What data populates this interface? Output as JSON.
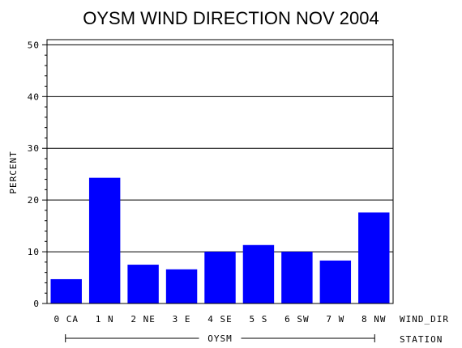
{
  "chart_data": {
    "type": "bar",
    "title": "OYSM WIND DIRECTION NOV 2004",
    "ylabel": "PERCENT",
    "xlabel": "WIND_DIR",
    "group_label": "STATION",
    "group_name": "OYSM",
    "categories": [
      "0 CA",
      "1 N",
      "2 NE",
      "3 E",
      "4 SE",
      "5 S",
      "6 SW",
      "7 W",
      "8 NW"
    ],
    "values": [
      4.7,
      24.3,
      7.5,
      6.6,
      10.0,
      11.3,
      10.0,
      8.3,
      17.6
    ],
    "ylim": [
      0,
      51
    ],
    "yticks": [
      0,
      10,
      20,
      30,
      40,
      50
    ],
    "grid": true,
    "bar_color": "#0000ff"
  }
}
